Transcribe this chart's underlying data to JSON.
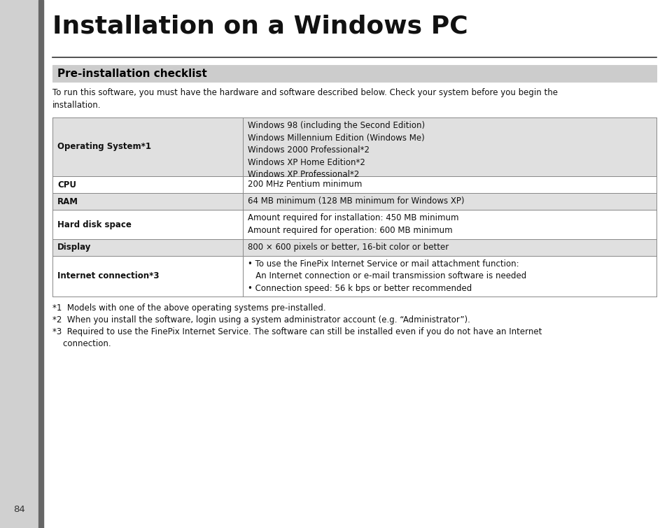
{
  "page_bg": "#d8d8d8",
  "content_bg": "#ffffff",
  "left_strip_color": "#d0d0d0",
  "dark_bar_color": "#666666",
  "title": "Installation on a Windows PC",
  "section_header": "Pre-installation checklist",
  "section_header_bg": "#cccccc",
  "section_header_border": "#888888",
  "intro_text": "To run this software, you must have the hardware and software described below. Check your system before you begin the\ninstallation.",
  "table_rows": [
    {
      "label": "Operating System*1",
      "value": "Windows 98 (including the Second Edition)\nWindows Millennium Edition (Windows Me)\nWindows 2000 Professional*2\nWindows XP Home Edition*2\nWindows XP Professional*2",
      "row_bg": "#e0e0e0"
    },
    {
      "label": "CPU",
      "value": "200 MHz Pentium minimum",
      "row_bg": "#ffffff"
    },
    {
      "label": "RAM",
      "value": "64 MB minimum (128 MB minimum for Windows XP)",
      "row_bg": "#e0e0e0"
    },
    {
      "label": "Hard disk space",
      "value": "Amount required for installation: 450 MB minimum\nAmount required for operation: 600 MB minimum",
      "row_bg": "#ffffff"
    },
    {
      "label": "Display",
      "value": "800 × 600 pixels or better, 16-bit color or better",
      "row_bg": "#e0e0e0"
    },
    {
      "label": "Internet connection*3",
      "value": "• To use the FinePix Internet Service or mail attachment function:\n   An Internet connection or e-mail transmission software is needed\n• Connection speed: 56 k bps or better recommended",
      "row_bg": "#ffffff"
    }
  ],
  "footnotes": [
    "*1  Models with one of the above operating systems pre-installed.",
    "*2  When you install the software, login using a system administrator account (e.g. “Administrator”).",
    "*3  Required to use the FinePix Internet Service. The software can still be installed even if you do not have an Internet\n    connection."
  ],
  "page_number": "84",
  "col_split": 0.315,
  "table_border": "#888888",
  "text_color": "#111111"
}
